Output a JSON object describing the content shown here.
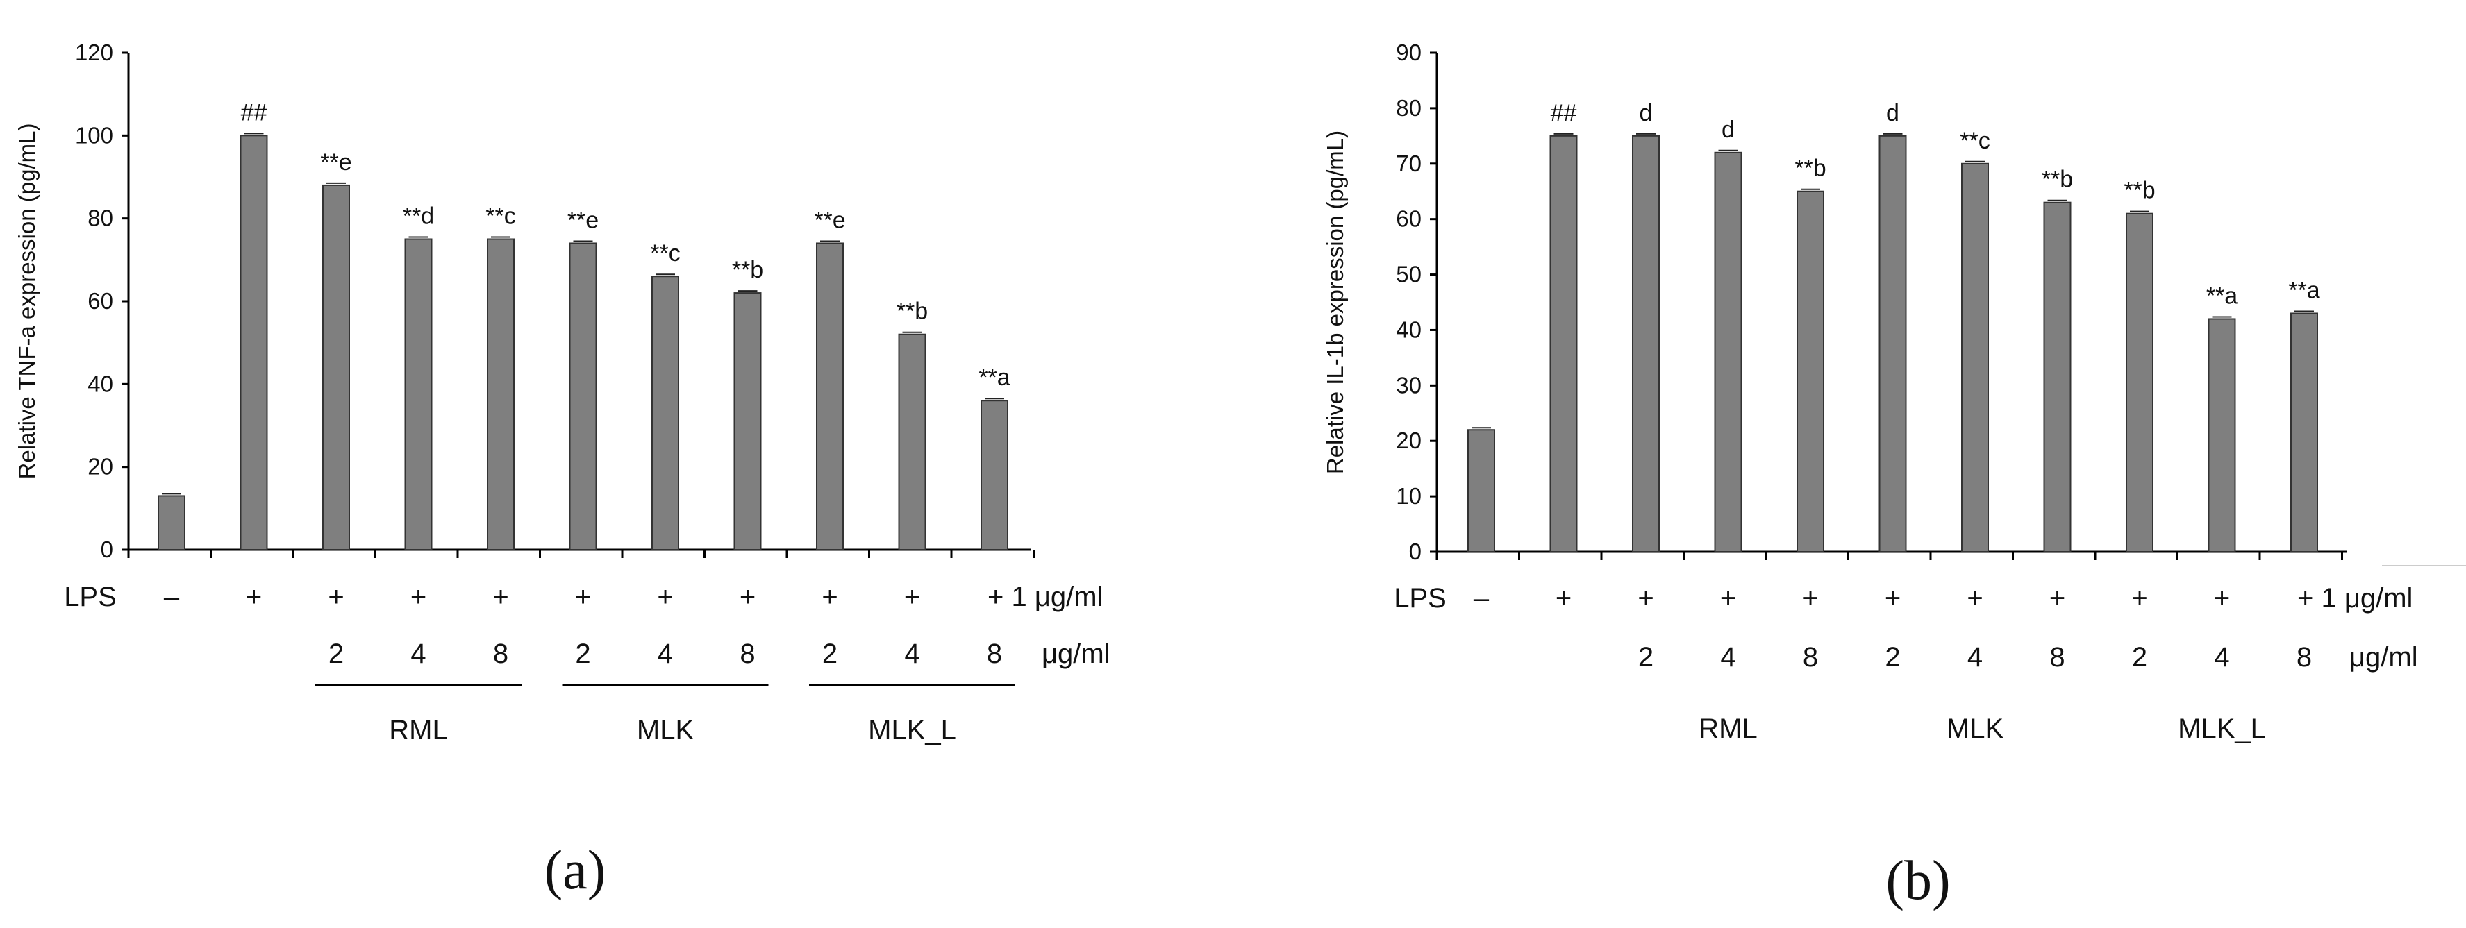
{
  "chart_data": [
    {
      "type": "bar",
      "panel_label": "(a)",
      "ylabel": "Relative TNF-a expression (pg/mL)",
      "ylim": [
        0,
        120
      ],
      "yticks": [
        0,
        20,
        40,
        60,
        80,
        100,
        120
      ],
      "bar_color": "#7f7f7f",
      "values": [
        13,
        100,
        88,
        75,
        75,
        74,
        66,
        62,
        74,
        52,
        36
      ],
      "lps_row": [
        "–",
        "+",
        "+",
        "+",
        "+",
        "+",
        "+",
        "+",
        "+",
        "+",
        "+ 1 μg/ml"
      ],
      "conc_row": [
        "",
        "",
        "2",
        "4",
        "8",
        "2",
        "4",
        "8",
        "2",
        "4",
        "8"
      ],
      "conc_unit": "μg/ml",
      "lps_label": "LPS",
      "annotations": [
        "",
        "##",
        "**e",
        "**d",
        "**c",
        "**e",
        "**c",
        "**b",
        "**e",
        "**b",
        "**a"
      ],
      "groups": [
        {
          "label": "RML",
          "start": 2,
          "end": 4
        },
        {
          "label": "MLK",
          "start": 5,
          "end": 7
        },
        {
          "label": "MLK_L",
          "start": 8,
          "end": 10
        }
      ]
    },
    {
      "type": "bar",
      "panel_label": "(b)",
      "ylabel": "Relative IL-1b expression (pg/mL)",
      "ylim": [
        0,
        90
      ],
      "yticks": [
        0,
        10,
        20,
        30,
        40,
        50,
        60,
        70,
        80,
        90
      ],
      "bar_color": "#7f7f7f",
      "values": [
        22,
        75,
        75,
        72,
        65,
        75,
        70,
        63,
        61,
        42,
        43
      ],
      "lps_row": [
        "–",
        "+",
        "+",
        "+",
        "+",
        "+",
        "+",
        "+",
        "+",
        "+",
        "+ 1 μg/ml"
      ],
      "conc_row": [
        "",
        "",
        "2",
        "4",
        "8",
        "2",
        "4",
        "8",
        "2",
        "4",
        "8"
      ],
      "conc_unit": "μg/ml",
      "lps_label": "LPS",
      "annotations": [
        "",
        "##",
        "d",
        "d",
        "**b",
        "d",
        "**c",
        "**b",
        "**b",
        "**a",
        "**a"
      ],
      "groups": [
        {
          "label": "RML",
          "start": 2,
          "end": 4
        },
        {
          "label": "MLK",
          "start": 5,
          "end": 7
        },
        {
          "label": "MLK_L",
          "start": 8,
          "end": 10
        }
      ]
    }
  ]
}
